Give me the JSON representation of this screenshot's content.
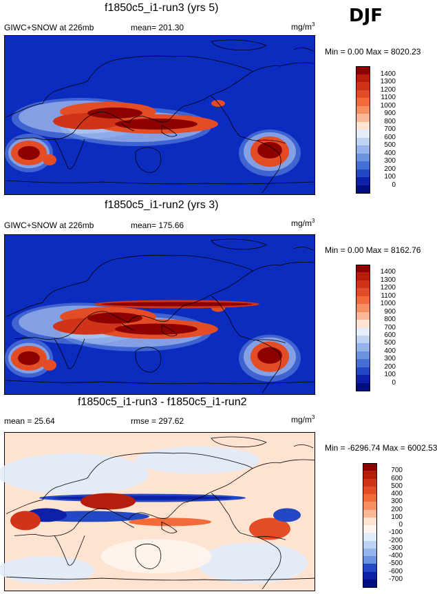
{
  "season": "DJF",
  "panels": [
    {
      "title": "f1850c5_i1-run3 (yrs 5)",
      "left_label": "GIWC+SNOW at 226mb",
      "mid_label": "mean= 201.30",
      "units": "mg/m",
      "units_sup": "3",
      "minmax": "Min =   0.00 Max = 8020.23",
      "levels": [
        "1400",
        "1300",
        "1200",
        "1100",
        "1000",
        "900",
        "800",
        "700",
        "600",
        "500",
        "400",
        "300",
        "200",
        "100",
        "0"
      ],
      "colors": [
        "#8c0000",
        "#b51e0c",
        "#cf3318",
        "#e34c24",
        "#f06a3a",
        "#f78f62",
        "#fbb898",
        "#fde3d0",
        "#e5ecfa",
        "#c0d2f4",
        "#95b4ec",
        "#6a92e0",
        "#4470d4",
        "#2348c4",
        "#0c20a8",
        "#000e82"
      ]
    },
    {
      "title": "f1850c5_i1-run2 (yrs 3)",
      "left_label": "GIWC+SNOW at 226mb",
      "mid_label": "mean= 175.66",
      "units": "mg/m",
      "units_sup": "3",
      "minmax": "Min =   0.00 Max = 8162.76",
      "levels": [
        "1400",
        "1300",
        "1200",
        "1100",
        "1000",
        "900",
        "800",
        "700",
        "600",
        "500",
        "400",
        "300",
        "200",
        "100",
        "0"
      ],
      "colors": [
        "#8c0000",
        "#b51e0c",
        "#cf3318",
        "#e34c24",
        "#f06a3a",
        "#f78f62",
        "#fbb898",
        "#fde3d0",
        "#e5ecfa",
        "#c0d2f4",
        "#95b4ec",
        "#6a92e0",
        "#4470d4",
        "#2348c4",
        "#0c20a8",
        "#000e82"
      ]
    },
    {
      "title": "f1850c5_i1-run3 - f1850c5_i1-run2",
      "left_label": "mean =  25.64",
      "mid_label": "rmse = 297.62",
      "units": "mg/m",
      "units_sup": "3",
      "minmax": "Min = -6296.74 Max = 6002.53",
      "levels": [
        "700",
        "600",
        "500",
        "400",
        "300",
        "200",
        "100",
        "0",
        "-100",
        "-200",
        "-300",
        "-400",
        "-500",
        "-600",
        "-700"
      ],
      "colors": [
        "#8c0000",
        "#b51e0c",
        "#cf3318",
        "#e34c24",
        "#f06a3a",
        "#f78f62",
        "#fbb898",
        "#fde3d0",
        "#fff5ee",
        "#e1ebfa",
        "#c0d2f4",
        "#95b4ec",
        "#6a92e0",
        "#2348c4",
        "#0c20a8",
        "#000e82"
      ]
    }
  ]
}
